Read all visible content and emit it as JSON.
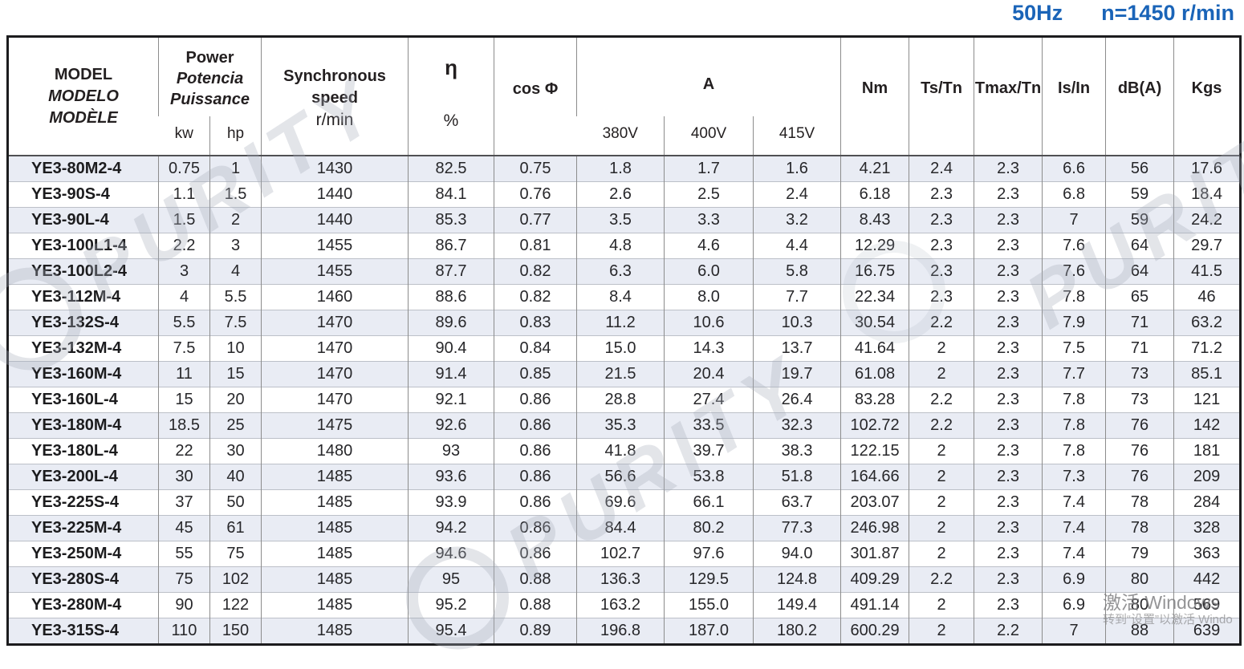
{
  "page": {
    "frequency_label": "50Hz",
    "speed_label": "n=1450 r/min",
    "accent_color": "#1a64b8",
    "stripe_color": "#e9ecf4"
  },
  "watermarks": {
    "brand": "PURITY",
    "activate_line1": "激活 Windows",
    "activate_line2": "转到“设置”以激活 Windo"
  },
  "table": {
    "header": {
      "model": [
        "MODEL",
        "MODELO",
        "MODÈLE"
      ],
      "power": [
        "Power",
        "Potencia",
        "Puissance"
      ],
      "power_sub": [
        "kw",
        "hp"
      ],
      "sync": [
        "Synchronous",
        "speed",
        "r/min"
      ],
      "eta": "η",
      "eta_unit": "%",
      "cos": "cos Φ",
      "current": "A",
      "current_sub": [
        "380V",
        "400V",
        "415V"
      ],
      "torque": "Nm",
      "ts_tn": "Ts/Tn",
      "tmax_tn": "Tmax/Tn",
      "is_in": "Is/In",
      "db": "dB(A)",
      "kgs": "Kgs"
    },
    "column_keys": [
      "model",
      "power-kw",
      "power-hp",
      "sync-speed",
      "efficiency",
      "power-factor",
      "current-380v",
      "current-400v",
      "current-415v",
      "torque-nm",
      "ts-tn",
      "tmax-tn",
      "is-in",
      "db",
      "kgs"
    ],
    "rows": [
      [
        "YE3-80M2-4",
        "0.75",
        "1",
        "1430",
        "82.5",
        "0.75",
        "1.8",
        "1.7",
        "1.6",
        "4.21",
        "2.4",
        "2.3",
        "6.6",
        "56",
        "17.6"
      ],
      [
        "YE3-90S-4",
        "1.1",
        "1.5",
        "1440",
        "84.1",
        "0.76",
        "2.6",
        "2.5",
        "2.4",
        "6.18",
        "2.3",
        "2.3",
        "6.8",
        "59",
        "18.4"
      ],
      [
        "YE3-90L-4",
        "1.5",
        "2",
        "1440",
        "85.3",
        "0.77",
        "3.5",
        "3.3",
        "3.2",
        "8.43",
        "2.3",
        "2.3",
        "7",
        "59",
        "24.2"
      ],
      [
        "YE3-100L1-4",
        "2.2",
        "3",
        "1455",
        "86.7",
        "0.81",
        "4.8",
        "4.6",
        "4.4",
        "12.29",
        "2.3",
        "2.3",
        "7.6",
        "64",
        "29.7"
      ],
      [
        "YE3-100L2-4",
        "3",
        "4",
        "1455",
        "87.7",
        "0.82",
        "6.3",
        "6.0",
        "5.8",
        "16.75",
        "2.3",
        "2.3",
        "7.6",
        "64",
        "41.5"
      ],
      [
        "YE3-112M-4",
        "4",
        "5.5",
        "1460",
        "88.6",
        "0.82",
        "8.4",
        "8.0",
        "7.7",
        "22.34",
        "2.3",
        "2.3",
        "7.8",
        "65",
        "46"
      ],
      [
        "YE3-132S-4",
        "5.5",
        "7.5",
        "1470",
        "89.6",
        "0.83",
        "11.2",
        "10.6",
        "10.3",
        "30.54",
        "2.2",
        "2.3",
        "7.9",
        "71",
        "63.2"
      ],
      [
        "YE3-132M-4",
        "7.5",
        "10",
        "1470",
        "90.4",
        "0.84",
        "15.0",
        "14.3",
        "13.7",
        "41.64",
        "2",
        "2.3",
        "7.5",
        "71",
        "71.2"
      ],
      [
        "YE3-160M-4",
        "11",
        "15",
        "1470",
        "91.4",
        "0.85",
        "21.5",
        "20.4",
        "19.7",
        "61.08",
        "2",
        "2.3",
        "7.7",
        "73",
        "85.1"
      ],
      [
        "YE3-160L-4",
        "15",
        "20",
        "1470",
        "92.1",
        "0.86",
        "28.8",
        "27.4",
        "26.4",
        "83.28",
        "2.2",
        "2.3",
        "7.8",
        "73",
        "121"
      ],
      [
        "YE3-180M-4",
        "18.5",
        "25",
        "1475",
        "92.6",
        "0.86",
        "35.3",
        "33.5",
        "32.3",
        "102.72",
        "2.2",
        "2.3",
        "7.8",
        "76",
        "142"
      ],
      [
        "YE3-180L-4",
        "22",
        "30",
        "1480",
        "93",
        "0.86",
        "41.8",
        "39.7",
        "38.3",
        "122.15",
        "2",
        "2.3",
        "7.8",
        "76",
        "181"
      ],
      [
        "YE3-200L-4",
        "30",
        "40",
        "1485",
        "93.6",
        "0.86",
        "56.6",
        "53.8",
        "51.8",
        "164.66",
        "2",
        "2.3",
        "7.3",
        "76",
        "209"
      ],
      [
        "YE3-225S-4",
        "37",
        "50",
        "1485",
        "93.9",
        "0.86",
        "69.6",
        "66.1",
        "63.7",
        "203.07",
        "2",
        "2.3",
        "7.4",
        "78",
        "284"
      ],
      [
        "YE3-225M-4",
        "45",
        "61",
        "1485",
        "94.2",
        "0.86",
        "84.4",
        "80.2",
        "77.3",
        "246.98",
        "2",
        "2.3",
        "7.4",
        "78",
        "328"
      ],
      [
        "YE3-250M-4",
        "55",
        "75",
        "1485",
        "94.6",
        "0.86",
        "102.7",
        "97.6",
        "94.0",
        "301.87",
        "2",
        "2.3",
        "7.4",
        "79",
        "363"
      ],
      [
        "YE3-280S-4",
        "75",
        "102",
        "1485",
        "95",
        "0.88",
        "136.3",
        "129.5",
        "124.8",
        "409.29",
        "2.2",
        "2.3",
        "6.9",
        "80",
        "442"
      ],
      [
        "YE3-280M-4",
        "90",
        "122",
        "1485",
        "95.2",
        "0.88",
        "163.2",
        "155.0",
        "149.4",
        "491.14",
        "2",
        "2.3",
        "6.9",
        "80",
        "569"
      ],
      [
        "YE3-315S-4",
        "110",
        "150",
        "1485",
        "95.4",
        "0.89",
        "196.8",
        "187.0",
        "180.2",
        "600.29",
        "2",
        "2.2",
        "7",
        "88",
        "639"
      ]
    ]
  }
}
